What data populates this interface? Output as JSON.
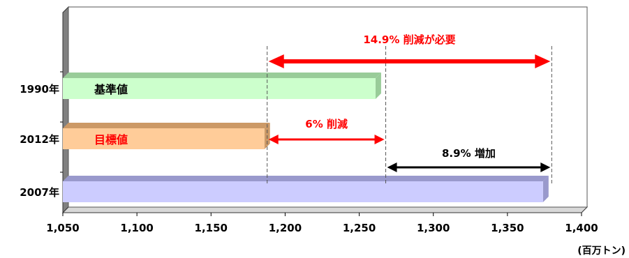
{
  "chart_data": {
    "type": "bar",
    "orientation": "horizontal",
    "categories": [
      "1990年",
      "2012年",
      "2007年"
    ],
    "values": [
      1261,
      1186,
      1374
    ],
    "bar_labels": [
      "基準値",
      "目標値",
      ""
    ],
    "colors": {
      "bars": [
        "#ccffcc",
        "#ffcc99",
        "#ccccff"
      ],
      "bar_tops": [
        "#99cc99",
        "#cc9966",
        "#9999cc"
      ],
      "bar_label_colors": [
        "#000000",
        "#ff0000",
        "#000000"
      ],
      "annotation_red": "#ff0000",
      "annotation_black": "#000000"
    },
    "xlim": [
      1050,
      1400
    ],
    "xticks": [
      "1,050",
      "1,100",
      "1,150",
      "1,200",
      "1,250",
      "1,300",
      "1,350",
      "1,400"
    ],
    "xtick_values": [
      1050,
      1100,
      1150,
      1200,
      1250,
      1300,
      1350,
      1400
    ],
    "unit_label": "(百万トン)",
    "reference_lines": [
      1186,
      1266,
      1378
    ],
    "annotations": [
      {
        "text": "14.9% 削減が必要",
        "from": 1186,
        "to": 1378,
        "color": "#ff0000"
      },
      {
        "text": "6% 削減",
        "from": 1186,
        "to": 1266,
        "color": "#ff0000"
      },
      {
        "text": "8.9% 増加",
        "from": 1266,
        "to": 1378,
        "color": "#000000"
      }
    ],
    "grid": false,
    "legend": "none"
  }
}
